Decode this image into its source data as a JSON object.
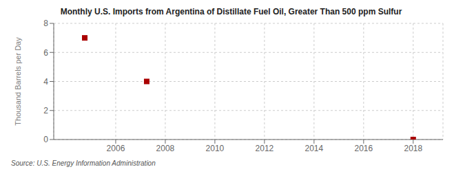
{
  "chart_data": {
    "type": "scatter",
    "title": "Monthly U.S. Imports from Argentina of Distillate Fuel Oil, Greater Than 500 ppm Sulfur",
    "ylabel": "Thousand Barrels per Day",
    "annotations": [
      "Source: U.S. Energy Information Administration"
    ],
    "x": [
      2004.75,
      2007.25,
      2018.0
    ],
    "values": [
      7.0,
      4.0,
      0.0
    ],
    "color": "#aa0000",
    "marker": "square",
    "xlim": [
      2003.5,
      2019.2
    ],
    "xticks": [
      2006,
      2008,
      2010,
      2012,
      2014,
      2016,
      2018
    ],
    "ylim": [
      0,
      8
    ],
    "yticks": [
      0,
      2,
      4,
      6,
      8
    ],
    "grid": true
  }
}
